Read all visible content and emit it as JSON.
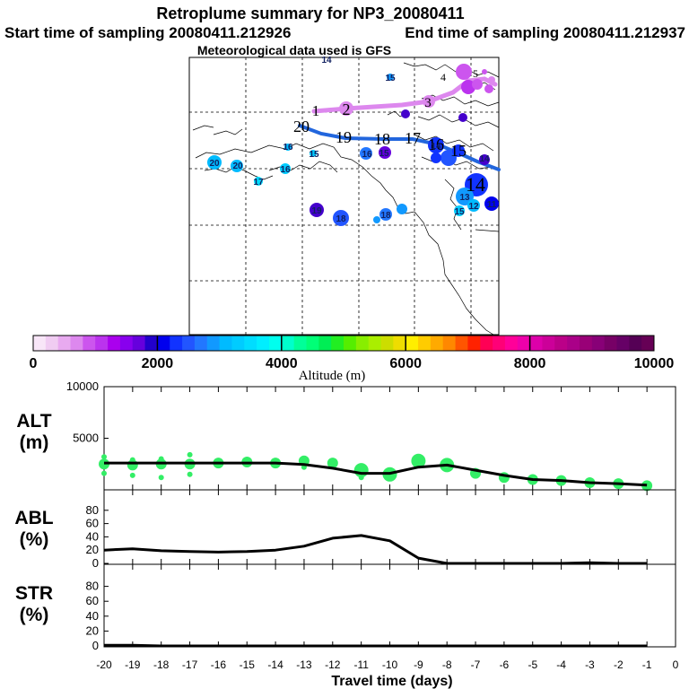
{
  "header": {
    "title": "Retroplume summary for NP3_20080411",
    "start_label": "Start time of sampling 20080411.212926",
    "end_label": "End time of sampling 20080411.212937",
    "met_label": "Meteorological data used is GFS"
  },
  "colors": {
    "plume_magenta": "#dd88ee",
    "plume_blue": "#2266dd",
    "alt_dots": "#33ee66",
    "line": "#000000",
    "map_bg": "#ffffff"
  },
  "map": {
    "plume1_labels": [
      "1",
      "2",
      "3",
      "4",
      "5"
    ],
    "plume2_labels": [
      "20",
      "19",
      "18",
      "17",
      "16",
      "15",
      "14"
    ],
    "stray_labels": [
      "14",
      "15",
      "16",
      "15",
      "14",
      "15",
      "16",
      "16",
      "17",
      "20",
      "20",
      "19",
      "18",
      "18",
      "13",
      "14",
      "15",
      "12",
      "11"
    ]
  },
  "colorbar": {
    "tick_labels": [
      "0",
      "2000",
      "4000",
      "6000",
      "8000",
      "10000"
    ],
    "title": "Altitude (m)",
    "colors": [
      "#f8e6f8",
      "#f0ccf2",
      "#e8aaf0",
      "#dd88ee",
      "#cc55ee",
      "#bb33ee",
      "#aa00ee",
      "#8800ee",
      "#6600dd",
      "#2200cc",
      "#0000ee",
      "#1133ff",
      "#2255ff",
      "#2277ff",
      "#1199ff",
      "#00bbff",
      "#00ccff",
      "#00ddff",
      "#00eeff",
      "#00ffee",
      "#00ffcc",
      "#00ff99",
      "#00ff77",
      "#00ee55",
      "#22ee22",
      "#55ee00",
      "#88ee00",
      "#aaee00",
      "#ccdd00",
      "#eedd00",
      "#ffee00",
      "#ffcc00",
      "#ffaa00",
      "#ff8800",
      "#ff5500",
      "#ff2200",
      "#ff0055",
      "#ff0077",
      "#ff0099",
      "#ee00aa",
      "#dd00aa",
      "#cc0099",
      "#bb0088",
      "#aa0088",
      "#990077",
      "#880077",
      "#770066",
      "#660066",
      "#550055",
      "#660055"
    ]
  },
  "chart_data": [
    {
      "type": "line",
      "panel": "ALT",
      "ylabel": "ALT\n(m)",
      "ylabel_line1": "ALT",
      "ylabel_line2": "(m)",
      "ylim": [
        0,
        10000
      ],
      "yticks": [
        "10000",
        "5000"
      ],
      "x": [
        -20,
        -19,
        -18,
        -17,
        -16,
        -15,
        -14,
        -13,
        -12,
        -11,
        -10,
        -9,
        -8,
        -7,
        -6,
        -5,
        -4,
        -3,
        -2,
        -1
      ],
      "values": [
        2600,
        2600,
        2600,
        2600,
        2600,
        2600,
        2600,
        2450,
        2100,
        1600,
        1600,
        2200,
        2400,
        1900,
        1400,
        1000,
        900,
        700,
        600,
        450
      ],
      "dots": [
        {
          "x": -20,
          "y": [
            2500,
            3200,
            1600
          ]
        },
        {
          "x": -19,
          "y": [
            2400,
            2900,
            1400
          ]
        },
        {
          "x": -18,
          "y": [
            2500,
            3000,
            1200
          ]
        },
        {
          "x": -17,
          "y": [
            2500,
            3400,
            1500
          ]
        },
        {
          "x": -16,
          "y": [
            2600
          ]
        },
        {
          "x": -15,
          "y": [
            2700
          ]
        },
        {
          "x": -14,
          "y": [
            2600
          ]
        },
        {
          "x": -13,
          "y": [
            2800,
            2200
          ]
        },
        {
          "x": -12,
          "y": [
            2600
          ]
        },
        {
          "x": -11,
          "y": [
            1900,
            1200
          ]
        },
        {
          "x": -10,
          "y": [
            1500
          ]
        },
        {
          "x": -9,
          "y": [
            2800,
            2400
          ]
        },
        {
          "x": -8,
          "y": [
            2400
          ]
        },
        {
          "x": -7,
          "y": [
            1600
          ]
        },
        {
          "x": -6,
          "y": [
            1200
          ]
        },
        {
          "x": -5,
          "y": [
            1000
          ]
        },
        {
          "x": -4,
          "y": [
            900
          ]
        },
        {
          "x": -3,
          "y": [
            700
          ]
        },
        {
          "x": -2,
          "y": [
            600
          ]
        },
        {
          "x": -1,
          "y": [
            400
          ]
        }
      ]
    },
    {
      "type": "line",
      "panel": "ABL",
      "ylabel_line1": "ABL",
      "ylabel_line2": "(%)",
      "ylim": [
        0,
        100
      ],
      "yticks": [
        "80",
        "60",
        "40",
        "20",
        "0"
      ],
      "x": [
        -20,
        -19,
        -18,
        -17,
        -16,
        -15,
        -14,
        -13,
        -12,
        -11,
        -10,
        -9,
        -8,
        -7,
        -6,
        -5,
        -4,
        -3,
        -2,
        -1
      ],
      "values": [
        20,
        22,
        19,
        18,
        17,
        18,
        20,
        26,
        38,
        42,
        34,
        8,
        0,
        0,
        0,
        0,
        0,
        1,
        0,
        0
      ]
    },
    {
      "type": "line",
      "panel": "STR",
      "ylabel_line1": "STR",
      "ylabel_line2": "(%)",
      "ylim": [
        0,
        100
      ],
      "yticks": [
        "80",
        "60",
        "40",
        "20",
        "0"
      ],
      "x": [
        -20,
        -19,
        -18,
        -17,
        -16,
        -15,
        -14,
        -13,
        -12,
        -11,
        -10,
        -9,
        -8,
        -7,
        -6,
        -5,
        -4,
        -3,
        -2,
        -1
      ],
      "values": [
        1,
        1,
        0,
        0,
        0,
        0,
        0,
        0,
        0,
        0,
        0,
        0,
        0,
        0,
        0,
        0,
        0,
        0,
        0,
        0
      ],
      "xlabel": "Travel time (days)",
      "xticks": [
        "-20",
        "-19",
        "-18",
        "-17",
        "-16",
        "-15",
        "-14",
        "-13",
        "-12",
        "-11",
        "-10",
        "-9",
        "-8",
        "-7",
        "-6",
        "-5",
        "-4",
        "-3",
        "-2",
        "-1",
        "0"
      ]
    }
  ]
}
